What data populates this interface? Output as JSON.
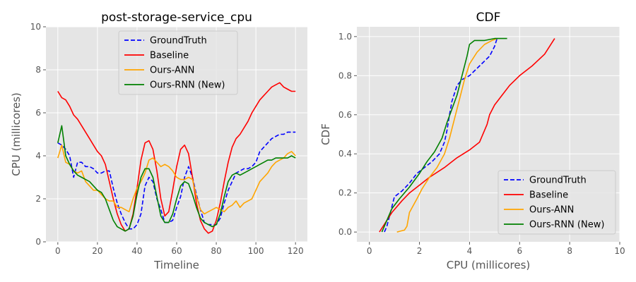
{
  "chart_data": [
    {
      "type": "line",
      "title": "post-storage-service_cpu",
      "xlabel": "Timeline",
      "ylabel": "CPU (millicores)",
      "xlim": [
        -6,
        126
      ],
      "ylim": [
        0,
        10
      ],
      "xticks": [
        0,
        20,
        40,
        60,
        80,
        100,
        120
      ],
      "yticks": [
        0,
        2,
        4,
        6,
        8,
        10
      ],
      "grid": true,
      "legend_position": "top-center",
      "colors": {
        "background": "#e5e5e5",
        "grid": "#ffffff"
      },
      "x": [
        0,
        2,
        4,
        6,
        8,
        10,
        12,
        14,
        16,
        18,
        20,
        22,
        24,
        26,
        28,
        30,
        32,
        34,
        36,
        38,
        40,
        42,
        44,
        46,
        48,
        50,
        52,
        54,
        56,
        58,
        60,
        62,
        64,
        66,
        68,
        70,
        72,
        74,
        76,
        78,
        80,
        82,
        84,
        86,
        88,
        90,
        92,
        94,
        96,
        98,
        100,
        102,
        104,
        106,
        108,
        110,
        112,
        114,
        116,
        118,
        120
      ],
      "series": [
        {
          "name": "GroundTruth",
          "color": "#0000ff",
          "style": "dashed",
          "values": [
            4.6,
            4.5,
            4.3,
            4.0,
            3.0,
            3.7,
            3.7,
            3.5,
            3.5,
            3.4,
            3.2,
            3.2,
            3.3,
            3.3,
            2.5,
            1.8,
            1.3,
            0.9,
            0.6,
            0.6,
            0.8,
            1.3,
            2.6,
            3.0,
            2.8,
            2.0,
            1.5,
            0.9,
            0.9,
            1.0,
            1.6,
            2.1,
            3.0,
            3.5,
            3.0,
            2.2,
            1.5,
            0.9,
            0.8,
            0.8,
            0.8,
            1.1,
            1.8,
            2.4,
            2.8,
            3.2,
            3.3,
            3.4,
            3.4,
            3.5,
            3.7,
            4.2,
            4.4,
            4.6,
            4.8,
            4.9,
            5.0,
            5.0,
            5.1,
            5.1,
            5.1
          ]
        },
        {
          "name": "Baseline",
          "color": "#ff0000",
          "style": "solid",
          "values": [
            7.0,
            6.7,
            6.6,
            6.3,
            5.9,
            5.7,
            5.4,
            5.1,
            4.8,
            4.5,
            4.2,
            4.0,
            3.6,
            2.8,
            2.0,
            1.3,
            0.8,
            0.5,
            0.6,
            1.3,
            2.5,
            3.8,
            4.6,
            4.7,
            4.3,
            3.3,
            2.0,
            1.2,
            1.4,
            2.4,
            3.5,
            4.3,
            4.5,
            4.1,
            3.0,
            1.8,
            1.0,
            0.6,
            0.4,
            0.5,
            1.0,
            1.8,
            2.8,
            3.7,
            4.4,
            4.8,
            5.0,
            5.3,
            5.6,
            6.0,
            6.3,
            6.6,
            6.8,
            7.0,
            7.2,
            7.3,
            7.4,
            7.2,
            7.1,
            7.0,
            7.0
          ]
        },
        {
          "name": "Ours-ANN",
          "color": "#ffa500",
          "style": "solid",
          "values": [
            3.9,
            4.5,
            3.7,
            3.6,
            3.3,
            3.2,
            3.3,
            2.8,
            2.6,
            2.4,
            2.4,
            2.2,
            2.0,
            1.9,
            1.9,
            1.6,
            1.6,
            1.5,
            1.4,
            2.0,
            2.5,
            2.8,
            3.2,
            3.8,
            3.9,
            3.7,
            3.5,
            3.6,
            3.5,
            3.3,
            3.0,
            2.9,
            2.9,
            3.0,
            2.9,
            2.1,
            1.5,
            1.3,
            1.4,
            1.5,
            1.6,
            1.5,
            1.4,
            1.6,
            1.7,
            1.9,
            1.6,
            1.8,
            1.9,
            2.0,
            2.4,
            2.8,
            3.0,
            3.2,
            3.5,
            3.7,
            3.8,
            3.9,
            4.1,
            4.2,
            4.0
          ]
        },
        {
          "name": "Ours-RNN (New)",
          "color": "#008000",
          "style": "solid",
          "values": [
            4.6,
            5.4,
            4.0,
            3.6,
            3.3,
            3.1,
            3.0,
            2.9,
            2.8,
            2.6,
            2.4,
            2.3,
            2.0,
            1.5,
            1.0,
            0.7,
            0.6,
            0.5,
            0.6,
            1.2,
            2.2,
            3.0,
            3.4,
            3.4,
            3.0,
            2.1,
            1.2,
            0.9,
            0.9,
            1.3,
            2.0,
            2.6,
            2.8,
            2.7,
            2.2,
            1.6,
            1.1,
            0.9,
            0.8,
            0.7,
            0.8,
            1.3,
            2.1,
            2.8,
            3.1,
            3.2,
            3.1,
            3.2,
            3.3,
            3.4,
            3.5,
            3.6,
            3.7,
            3.8,
            3.8,
            3.9,
            3.9,
            3.9,
            3.9,
            4.0,
            3.9
          ]
        }
      ]
    },
    {
      "type": "line",
      "title": "CDF",
      "xlabel": "CPU (millicores)",
      "ylabel": "CDF",
      "xlim": [
        -0.5,
        10
      ],
      "ylim": [
        -0.05,
        1.05
      ],
      "xticks": [
        0,
        2,
        4,
        6,
        8,
        10
      ],
      "yticks": [
        0.0,
        0.2,
        0.4,
        0.6,
        0.8,
        1.0
      ],
      "grid": true,
      "legend_position": "bottom-right",
      "colors": {
        "background": "#e5e5e5",
        "grid": "#ffffff"
      },
      "series": [
        {
          "name": "GroundTruth",
          "color": "#0000ff",
          "style": "dashed",
          "x": [
            0.6,
            0.7,
            0.8,
            0.9,
            1.0,
            1.3,
            1.6,
            1.9,
            2.2,
            2.5,
            2.8,
            3.0,
            3.1,
            3.2,
            3.3,
            3.4,
            3.5,
            3.7,
            4.0,
            4.4,
            4.8,
            5.0,
            5.1
          ],
          "y": [
            0.0,
            0.03,
            0.08,
            0.13,
            0.18,
            0.21,
            0.25,
            0.3,
            0.33,
            0.36,
            0.4,
            0.46,
            0.52,
            0.6,
            0.67,
            0.71,
            0.75,
            0.78,
            0.8,
            0.85,
            0.9,
            0.95,
            0.99
          ]
        },
        {
          "name": "Baseline",
          "color": "#ff0000",
          "style": "solid",
          "x": [
            0.4,
            0.6,
            0.9,
            1.3,
            1.6,
            2.0,
            2.4,
            3.0,
            3.5,
            4.0,
            4.4,
            4.7,
            4.8,
            5.0,
            5.3,
            5.6,
            6.0,
            6.5,
            7.0,
            7.3,
            7.4
          ],
          "y": [
            0.0,
            0.04,
            0.1,
            0.16,
            0.2,
            0.24,
            0.28,
            0.33,
            0.38,
            0.42,
            0.46,
            0.55,
            0.6,
            0.65,
            0.7,
            0.75,
            0.8,
            0.85,
            0.91,
            0.97,
            0.99
          ]
        },
        {
          "name": "Ours-ANN",
          "color": "#ffa500",
          "style": "solid",
          "x": [
            1.1,
            1.4,
            1.5,
            1.6,
            1.9,
            2.1,
            2.4,
            2.7,
            3.0,
            3.2,
            3.4,
            3.6,
            3.8,
            4.0,
            4.3,
            4.6,
            4.9,
            5.1
          ],
          "y": [
            0.0,
            0.01,
            0.03,
            0.1,
            0.17,
            0.22,
            0.28,
            0.33,
            0.4,
            0.48,
            0.58,
            0.68,
            0.78,
            0.86,
            0.92,
            0.96,
            0.98,
            0.99
          ]
        },
        {
          "name": "Ours-RNN (New)",
          "color": "#008000",
          "style": "solid",
          "x": [
            0.5,
            0.7,
            0.9,
            1.2,
            1.6,
            2.0,
            2.3,
            2.6,
            2.9,
            3.1,
            3.3,
            3.5,
            3.7,
            3.9,
            4.0,
            4.2,
            4.6,
            5.0,
            5.5
          ],
          "y": [
            0.0,
            0.06,
            0.12,
            0.17,
            0.23,
            0.3,
            0.36,
            0.41,
            0.48,
            0.56,
            0.63,
            0.7,
            0.8,
            0.9,
            0.96,
            0.98,
            0.98,
            0.99,
            0.99
          ]
        }
      ]
    }
  ]
}
